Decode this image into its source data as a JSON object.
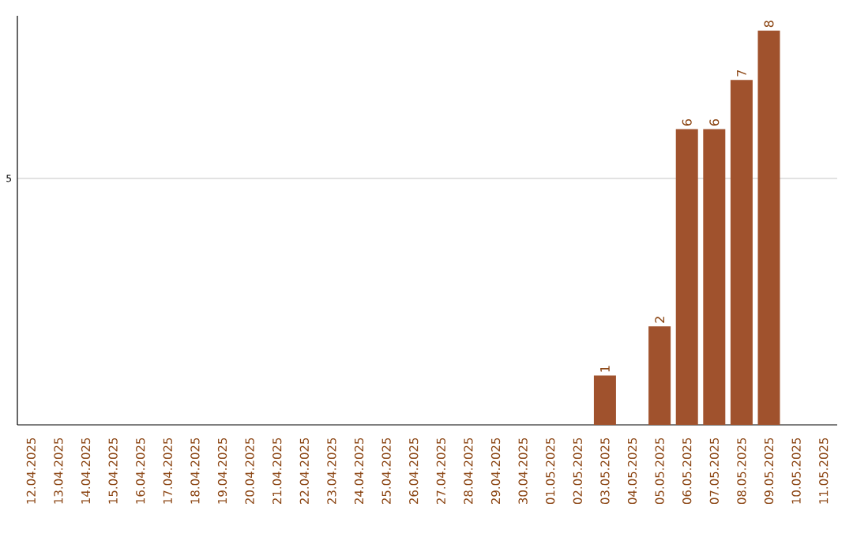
{
  "chart_data": {
    "type": "bar",
    "categories": [
      "12.04.2025",
      "13.04.2025",
      "14.04.2025",
      "15.04.2025",
      "16.04.2025",
      "17.04.2025",
      "18.04.2025",
      "19.04.2025",
      "20.04.2025",
      "21.04.2025",
      "22.04.2025",
      "23.04.2025",
      "24.04.2025",
      "25.04.2025",
      "26.04.2025",
      "27.04.2025",
      "28.04.2025",
      "29.04.2025",
      "30.04.2025",
      "01.05.2025",
      "02.05.2025",
      "03.05.2025",
      "04.05.2025",
      "05.05.2025",
      "06.05.2025",
      "07.05.2025",
      "08.05.2025",
      "09.05.2025",
      "10.05.2025",
      "11.05.2025"
    ],
    "values": [
      null,
      null,
      null,
      null,
      null,
      null,
      null,
      null,
      null,
      null,
      null,
      null,
      null,
      null,
      null,
      null,
      null,
      null,
      null,
      null,
      null,
      1,
      null,
      2,
      6,
      6,
      7,
      8,
      null,
      null
    ],
    "color": "#a0522d",
    "ylim": [
      0,
      8.3
    ],
    "yticks": [
      5
    ],
    "grid": "y",
    "data_labels": true
  }
}
